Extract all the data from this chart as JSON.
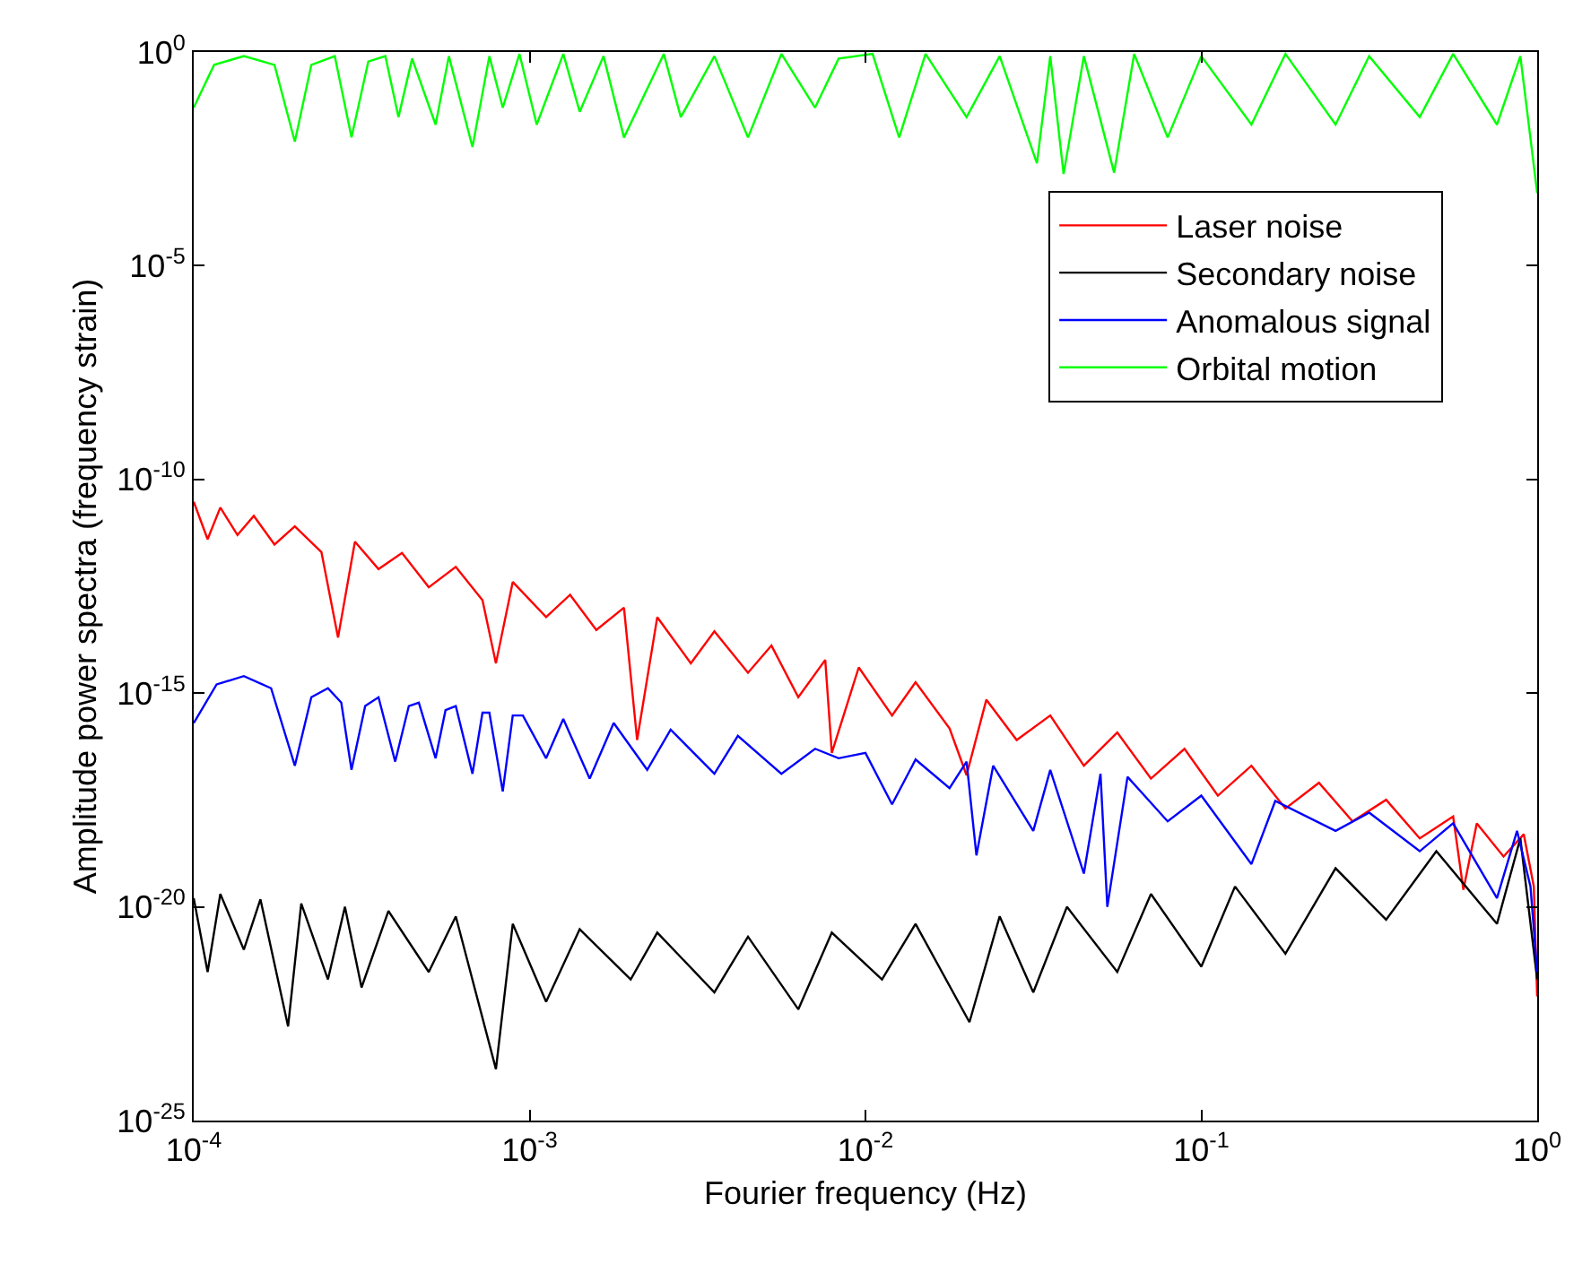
{
  "chart_data": {
    "type": "line",
    "xlabel": "Fourier frequency (Hz)",
    "ylabel": "Amplitude power spectra (frequency strain)",
    "log": "xy",
    "legend": "top right",
    "marker": "none",
    "line_style": "solid",
    "xlim": [
      0.0001,
      1
    ],
    "ylim": [
      1e-25,
      1
    ],
    "xticks": [
      {
        "value": 0.0001,
        "label": "10$^{-4}$"
      },
      {
        "value": 0.001,
        "label": "10$^{-3}$"
      },
      {
        "value": 0.01,
        "label": "10$^{-2}$"
      },
      {
        "value": 0.1,
        "label": "10$^{-1}$"
      },
      {
        "value": 1,
        "label": "10$^{0}$"
      }
    ],
    "yticks": [
      {
        "value": 1e-25,
        "label": "10$^{-25}$"
      },
      {
        "value": 1e-20,
        "label": "10$^{-20}$"
      },
      {
        "value": 1e-15,
        "label": "10$^{-15}$"
      },
      {
        "value": 1e-10,
        "label": "10$^{-10}$"
      },
      {
        "value": 1e-05,
        "label": "10$^{-5}$"
      },
      {
        "value": 1,
        "label": "10$^{0}$"
      }
    ],
    "series": [
      {
        "name": "Laser noise",
        "color": "#ff0000",
        "x": [
          0.0001,
          0.00011,
          0.00012,
          0.000135,
          0.000151,
          0.000174,
          0.0002,
          0.00024,
          0.000269,
          0.000302,
          0.000355,
          0.000417,
          0.000501,
          0.000603,
          0.000724,
          0.000794,
          0.000891,
          0.00112,
          0.00132,
          0.00158,
          0.00191,
          0.00209,
          0.0024,
          0.00302,
          0.00355,
          0.00447,
          0.00525,
          0.00631,
          0.00759,
          0.00794,
          0.00955,
          0.012,
          0.0141,
          0.0178,
          0.02,
          0.0229,
          0.0282,
          0.0355,
          0.0447,
          0.0562,
          0.0708,
          0.0891,
          0.112,
          0.141,
          0.178,
          0.224,
          0.282,
          0.355,
          0.447,
          0.562,
          0.603,
          0.661,
          0.794,
          0.912,
          0.977,
          1
        ],
        "values": [
          3e-11,
          4e-12,
          2.2e-11,
          5e-12,
          1.4e-11,
          3e-12,
          8e-12,
          2e-12,
          2e-14,
          3.5e-12,
          8e-13,
          1.9e-12,
          3e-13,
          9e-13,
          1.5e-13,
          5e-15,
          4e-13,
          6e-14,
          2e-13,
          3e-14,
          1e-13,
          8e-17,
          6e-14,
          5e-15,
          2.8e-14,
          3e-15,
          1.3e-14,
          8e-16,
          6e-15,
          4e-17,
          4e-15,
          3e-16,
          1.8e-15,
          1.5e-16,
          1.2e-17,
          7e-16,
          8e-17,
          3e-16,
          2e-17,
          1.2e-16,
          1e-17,
          5e-17,
          4e-18,
          2e-17,
          2e-18,
          8e-18,
          1e-18,
          3.2e-18,
          4e-19,
          1.3e-18,
          2.5e-20,
          9e-19,
          1.5e-19,
          5e-19,
          3e-20,
          8e-23
        ]
      },
      {
        "name": "Secondary noise",
        "color": "#000000",
        "x": [
          0.0001,
          0.00011,
          0.00012,
          0.000141,
          0.000158,
          0.000191,
          0.000209,
          0.000251,
          0.000282,
          0.000316,
          0.00038,
          0.000501,
          0.000603,
          0.000794,
          0.000891,
          0.00112,
          0.00141,
          0.002,
          0.0024,
          0.00355,
          0.00447,
          0.00631,
          0.00794,
          0.0112,
          0.0141,
          0.0204,
          0.0251,
          0.0316,
          0.0398,
          0.0562,
          0.0708,
          0.1,
          0.126,
          0.178,
          0.251,
          0.355,
          0.501,
          0.759,
          0.891,
          1
        ],
        "values": [
          1.6e-20,
          3e-22,
          2e-20,
          1e-21,
          1.5e-20,
          1.6e-23,
          1.2e-20,
          2e-22,
          1e-20,
          1.3e-22,
          8e-21,
          3e-22,
          6e-21,
          1.6e-24,
          4e-21,
          6e-23,
          3e-21,
          2e-22,
          2.5e-21,
          1e-22,
          2e-21,
          4e-23,
          2.5e-21,
          2e-22,
          4e-21,
          2e-23,
          6e-21,
          1e-22,
          1e-20,
          3e-22,
          2e-20,
          4e-22,
          3e-20,
          8e-22,
          8e-20,
          5e-21,
          2e-19,
          4e-21,
          4e-19,
          2e-22
        ]
      },
      {
        "name": "Anomalous signal",
        "color": "#0000ff",
        "x": [
          0.0001,
          0.000117,
          0.000141,
          0.00017,
          0.0002,
          0.000224,
          0.000251,
          0.000275,
          0.000295,
          0.000324,
          0.000355,
          0.000398,
          0.000437,
          0.000468,
          0.000525,
          0.000562,
          0.000603,
          0.000676,
          0.000724,
          0.000759,
          0.000832,
          0.000891,
          0.000955,
          0.00112,
          0.00126,
          0.00151,
          0.00178,
          0.00224,
          0.00263,
          0.00355,
          0.00417,
          0.00562,
          0.00708,
          0.00832,
          0.01,
          0.012,
          0.0141,
          0.0178,
          0.02,
          0.0214,
          0.024,
          0.0316,
          0.0355,
          0.0447,
          0.0501,
          0.0525,
          0.0603,
          0.0794,
          0.1,
          0.141,
          0.166,
          0.251,
          0.316,
          0.447,
          0.562,
          0.759,
          0.871,
          0.955,
          1
        ],
        "values": [
          2e-16,
          1.6e-15,
          2.5e-15,
          1.3e-15,
          2e-17,
          8e-16,
          1.3e-15,
          6e-16,
          1.6e-17,
          5e-16,
          8e-16,
          2.5e-17,
          5e-16,
          6e-16,
          3e-17,
          4e-16,
          5e-16,
          1.3e-17,
          3.5e-16,
          3.5e-16,
          5e-18,
          3e-16,
          3e-16,
          3e-17,
          2.5e-16,
          1e-17,
          2e-16,
          1.6e-17,
          1.4e-16,
          1.3e-17,
          1e-16,
          1.3e-17,
          5e-17,
          3e-17,
          4e-17,
          2.5e-18,
          2.8e-17,
          6e-18,
          2.5e-17,
          1.6e-19,
          2e-17,
          6e-19,
          1.6e-17,
          6e-20,
          1.3e-17,
          1e-20,
          1.1e-17,
          1e-18,
          4e-18,
          1e-19,
          3e-18,
          6e-19,
          1.6e-18,
          2e-19,
          9e-19,
          1.6e-20,
          6e-19,
          3e-20,
          3e-22
        ]
      },
      {
        "name": "Orbital motion",
        "color": "#00ff00",
        "x": [
          0.0001,
          0.000115,
          0.000141,
          0.000174,
          0.0002,
          0.000224,
          0.000263,
          0.000295,
          0.000331,
          0.000372,
          0.000407,
          0.000447,
          0.000525,
          0.000575,
          0.000676,
          0.000759,
          0.000832,
          0.000933,
          0.00105,
          0.00126,
          0.00141,
          0.00166,
          0.00191,
          0.00251,
          0.00282,
          0.00355,
          0.00447,
          0.00562,
          0.00708,
          0.00832,
          0.0105,
          0.0126,
          0.0151,
          0.02,
          0.0251,
          0.0324,
          0.0355,
          0.0389,
          0.0447,
          0.055,
          0.0631,
          0.0794,
          0.1,
          0.141,
          0.178,
          0.251,
          0.316,
          0.447,
          0.562,
          0.759,
          0.891,
          1
        ],
        "values": [
          0.05,
          0.5,
          0.8,
          0.5,
          0.008,
          0.5,
          0.8,
          0.01,
          0.6,
          0.8,
          0.03,
          0.7,
          0.02,
          0.8,
          0.006,
          0.8,
          0.05,
          0.9,
          0.02,
          0.9,
          0.04,
          0.8,
          0.01,
          0.9,
          0.03,
          0.8,
          0.01,
          0.9,
          0.05,
          0.7,
          0.9,
          0.01,
          0.9,
          0.03,
          0.8,
          0.0025,
          0.8,
          0.0014,
          0.8,
          0.0015,
          0.9,
          0.01,
          0.8,
          0.02,
          0.9,
          0.02,
          0.8,
          0.03,
          0.9,
          0.02,
          0.8,
          0.0005
        ]
      }
    ]
  }
}
